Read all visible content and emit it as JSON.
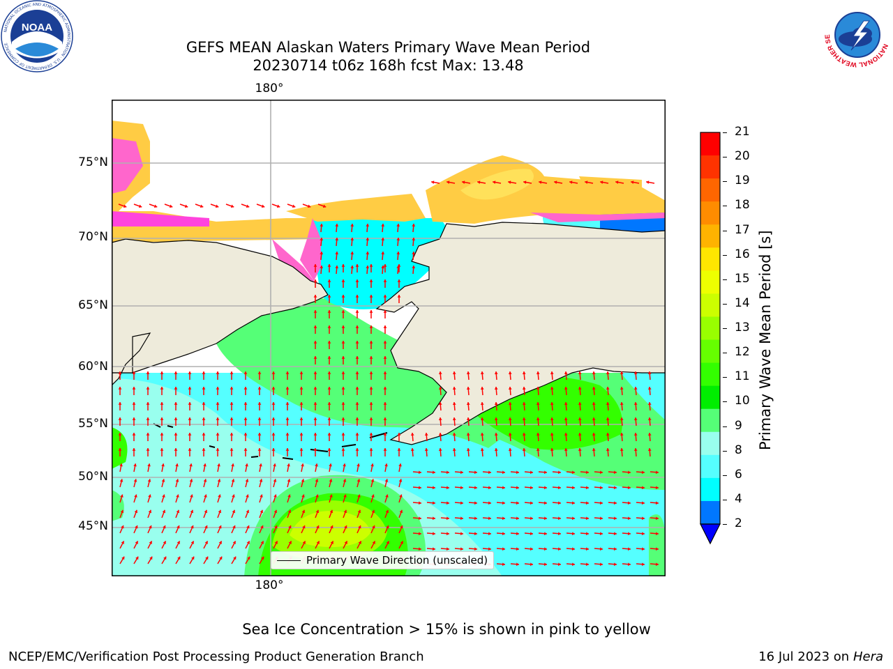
{
  "header": {
    "title_line1": "GEFS MEAN Alaskan Waters Primary Wave Mean Period",
    "title_line2": "20230714 t06z 168h fcst   Max: 13.48"
  },
  "logos": {
    "noaa_center": "NOAA",
    "noaa_ring": "NATIONAL OCEANIC AND ATMOSPHERIC ADMINISTRATION · U.S. DEPARTMENT OF COMMERCE",
    "nws_ring": "NATIONAL WEATHER SERVICE"
  },
  "map": {
    "lon_label_top": "180°",
    "lon_label_bottom": "180°",
    "lat_labels": [
      "75°N",
      "70°N",
      "65°N",
      "60°N",
      "55°N",
      "50°N",
      "45°N"
    ],
    "legend_label": "Primary Wave Direction (unscaled)",
    "colors": {
      "land": "#eeebdb",
      "arrow": "#ff0000",
      "grid": "#b0b0b0"
    }
  },
  "colorbar": {
    "title": "Primary Wave Mean Period [s]",
    "ticks": [
      "21",
      "20",
      "19",
      "18",
      "17",
      "16",
      "15",
      "14",
      "13",
      "12",
      "11",
      "10",
      "9",
      "8",
      "6",
      "4",
      "2"
    ],
    "colors": [
      "#ff0000",
      "#ff3300",
      "#ff6600",
      "#ff8c00",
      "#ffb300",
      "#ffe600",
      "#eeff00",
      "#ccff00",
      "#99ff00",
      "#66ff00",
      "#33ff00",
      "#00ee00",
      "#55ff77",
      "#99ffee",
      "#55ffff",
      "#00ffff",
      "#0077ff",
      "#0000ff"
    ]
  },
  "footer": {
    "sea_ice_note": "Sea Ice Concentration > 15% is shown in pink to yellow",
    "producer": "NCEP/EMC/Verification Post Processing Product Generation Branch",
    "date": "16 Jul 2023 on",
    "machine": "Hera"
  }
}
